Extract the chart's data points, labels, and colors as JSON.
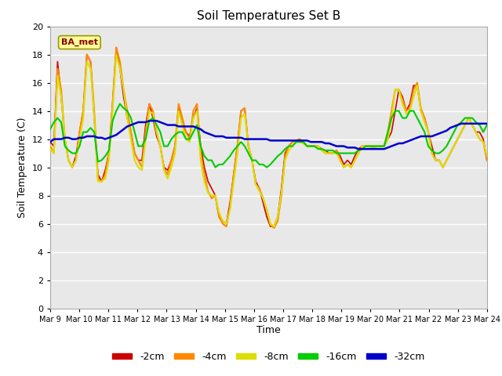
{
  "title": "Soil Temperatures Set B",
  "xlabel": "Time",
  "ylabel": "Soil Temperature (C)",
  "annotation": "BA_met",
  "ylim": [
    0,
    20
  ],
  "yticks": [
    0,
    2,
    4,
    6,
    8,
    10,
    12,
    14,
    16,
    18,
    20
  ],
  "xtick_labels": [
    "Mar 9",
    "Mar 10",
    "Mar 11",
    "Mar 12",
    "Mar 13",
    "Mar 14",
    "Mar 15",
    "Mar 16",
    "Mar 17",
    "Mar 18",
    "Mar 19",
    "Mar 20",
    "Mar 21",
    "Mar 22",
    "Mar 23",
    "Mar 24"
  ],
  "series": {
    "-2cm": {
      "color": "#cc0000",
      "lw": 1.2,
      "data": [
        11.8,
        11.5,
        17.5,
        15.0,
        12.0,
        10.5,
        10.0,
        10.8,
        12.5,
        14.0,
        18.0,
        17.5,
        13.5,
        9.5,
        9.0,
        9.8,
        11.0,
        14.5,
        18.5,
        17.0,
        15.0,
        13.5,
        12.5,
        11.0,
        10.5,
        10.5,
        13.0,
        14.5,
        13.5,
        12.2,
        11.5,
        10.0,
        9.8,
        10.5,
        11.5,
        14.3,
        13.0,
        12.5,
        12.2,
        13.5,
        14.2,
        11.5,
        10.0,
        9.0,
        8.5,
        8.0,
        6.5,
        6.2,
        6.0,
        7.5,
        9.5,
        11.5,
        14.0,
        14.2,
        11.5,
        10.5,
        9.0,
        8.5,
        7.5,
        6.5,
        5.8,
        5.8,
        6.5,
        8.5,
        11.0,
        11.5,
        11.8,
        11.9,
        12.0,
        11.8,
        11.5,
        11.5,
        11.5,
        11.5,
        11.3,
        11.2,
        11.0,
        11.0,
        11.2,
        10.8,
        10.2,
        10.5,
        10.2,
        10.8,
        11.3,
        11.5,
        11.5,
        11.5,
        11.5,
        11.5,
        11.5,
        11.5,
        12.0,
        12.5,
        14.0,
        15.5,
        15.0,
        14.0,
        14.5,
        15.8,
        15.8,
        14.0,
        13.5,
        12.5,
        11.5,
        10.5,
        10.5,
        10.0,
        10.5,
        11.0,
        11.5,
        12.0,
        12.5,
        13.0,
        13.5,
        13.0,
        12.5,
        12.5,
        12.0,
        10.5
      ]
    },
    "-4cm": {
      "color": "#ff8800",
      "lw": 1.5,
      "data": [
        11.5,
        11.0,
        17.0,
        15.5,
        12.0,
        10.5,
        10.0,
        10.5,
        12.5,
        14.0,
        18.0,
        17.5,
        14.0,
        9.2,
        9.0,
        9.5,
        11.0,
        14.5,
        18.5,
        17.5,
        15.5,
        14.0,
        12.5,
        11.0,
        10.5,
        10.0,
        12.5,
        14.5,
        14.0,
        12.5,
        11.5,
        9.9,
        9.5,
        10.5,
        11.5,
        14.5,
        13.5,
        12.5,
        12.0,
        14.0,
        14.5,
        11.0,
        9.5,
        8.3,
        7.8,
        8.0,
        6.5,
        6.0,
        5.8,
        7.2,
        9.5,
        11.5,
        14.0,
        14.2,
        11.5,
        10.5,
        8.8,
        8.5,
        7.8,
        7.0,
        5.9,
        5.7,
        6.2,
        8.0,
        10.8,
        11.5,
        11.8,
        11.9,
        12.0,
        11.7,
        11.5,
        11.5,
        11.5,
        11.5,
        11.2,
        11.0,
        11.0,
        11.0,
        11.2,
        10.5,
        10.0,
        10.2,
        10.0,
        10.5,
        11.0,
        11.5,
        11.5,
        11.5,
        11.3,
        11.5,
        11.5,
        11.5,
        12.5,
        14.0,
        15.5,
        15.5,
        14.8,
        14.0,
        14.2,
        15.5,
        16.0,
        14.2,
        13.5,
        12.5,
        11.0,
        10.5,
        10.5,
        10.0,
        10.5,
        11.0,
        11.5,
        12.0,
        12.5,
        13.0,
        13.5,
        13.0,
        12.5,
        12.0,
        11.8,
        10.5
      ]
    },
    "-8cm": {
      "color": "#dddd00",
      "lw": 1.5,
      "data": [
        11.3,
        11.0,
        16.5,
        15.0,
        12.0,
        10.5,
        10.0,
        10.5,
        12.0,
        13.5,
        17.5,
        17.0,
        13.5,
        9.0,
        9.0,
        9.2,
        10.5,
        14.0,
        18.0,
        17.0,
        15.5,
        13.5,
        12.0,
        10.5,
        10.0,
        9.8,
        12.0,
        14.0,
        13.8,
        12.5,
        11.5,
        9.8,
        9.2,
        10.0,
        11.0,
        14.0,
        13.0,
        12.0,
        11.8,
        13.5,
        14.0,
        10.5,
        9.0,
        8.2,
        8.0,
        8.0,
        6.8,
        6.2,
        6.0,
        7.0,
        9.0,
        11.0,
        13.5,
        13.8,
        11.5,
        10.5,
        8.8,
        8.3,
        7.8,
        7.0,
        6.0,
        5.8,
        6.5,
        8.2,
        10.5,
        11.2,
        11.5,
        11.8,
        11.8,
        11.7,
        11.5,
        11.5,
        11.5,
        11.5,
        11.2,
        11.0,
        11.0,
        11.0,
        11.0,
        10.5,
        10.0,
        10.2,
        10.0,
        10.5,
        11.0,
        11.5,
        11.5,
        11.5,
        11.3,
        11.5,
        11.5,
        11.5,
        12.0,
        13.5,
        15.5,
        15.5,
        14.5,
        13.8,
        14.0,
        15.0,
        15.8,
        14.0,
        13.2,
        12.5,
        11.0,
        10.5,
        10.5,
        10.0,
        10.5,
        11.0,
        11.5,
        12.0,
        12.5,
        13.0,
        13.5,
        13.0,
        12.5,
        12.0,
        11.8,
        10.8
      ]
    },
    "-16cm": {
      "color": "#00cc00",
      "lw": 1.5,
      "data": [
        12.7,
        13.2,
        13.5,
        13.2,
        11.5,
        11.2,
        11.0,
        11.0,
        11.5,
        12.5,
        12.5,
        12.8,
        12.5,
        10.4,
        10.5,
        10.8,
        11.2,
        13.3,
        14.0,
        14.5,
        14.2,
        14.0,
        13.5,
        12.5,
        11.5,
        11.5,
        12.0,
        13.3,
        13.5,
        13.0,
        12.5,
        11.5,
        11.5,
        12.0,
        12.3,
        12.5,
        12.5,
        12.0,
        12.0,
        12.5,
        13.0,
        11.5,
        10.8,
        10.5,
        10.5,
        10.0,
        10.2,
        10.2,
        10.5,
        10.8,
        11.2,
        11.5,
        11.8,
        11.5,
        11.0,
        10.5,
        10.5,
        10.2,
        10.2,
        10.0,
        10.2,
        10.5,
        10.8,
        11.0,
        11.3,
        11.5,
        11.5,
        11.8,
        11.8,
        11.8,
        11.5,
        11.5,
        11.5,
        11.3,
        11.3,
        11.2,
        11.2,
        11.2,
        11.0,
        11.0,
        11.0,
        11.0,
        11.0,
        11.0,
        11.2,
        11.3,
        11.5,
        11.5,
        11.5,
        11.5,
        11.5,
        11.5,
        12.5,
        13.5,
        14.0,
        14.0,
        13.5,
        13.5,
        14.0,
        14.0,
        13.5,
        13.0,
        12.5,
        11.5,
        11.2,
        11.0,
        11.0,
        11.2,
        11.5,
        12.0,
        12.5,
        13.0,
        13.2,
        13.5,
        13.5,
        13.5,
        13.2,
        13.0,
        12.5,
        13.0
      ]
    },
    "-32cm": {
      "color": "#0000cc",
      "lw": 1.8,
      "data": [
        11.8,
        12.0,
        12.0,
        12.0,
        12.1,
        12.1,
        12.0,
        12.0,
        12.1,
        12.1,
        12.2,
        12.2,
        12.2,
        12.1,
        12.1,
        12.0,
        12.1,
        12.2,
        12.3,
        12.5,
        12.7,
        12.9,
        13.0,
        13.1,
        13.2,
        13.2,
        13.2,
        13.3,
        13.3,
        13.3,
        13.2,
        13.1,
        13.0,
        13.0,
        13.0,
        12.9,
        12.9,
        12.9,
        12.9,
        12.9,
        12.8,
        12.7,
        12.5,
        12.4,
        12.3,
        12.2,
        12.2,
        12.2,
        12.1,
        12.1,
        12.1,
        12.1,
        12.1,
        12.0,
        12.0,
        12.0,
        12.0,
        12.0,
        12.0,
        12.0,
        11.9,
        11.9,
        11.9,
        11.9,
        11.9,
        11.9,
        11.9,
        11.9,
        11.9,
        11.9,
        11.9,
        11.8,
        11.8,
        11.8,
        11.8,
        11.7,
        11.7,
        11.6,
        11.5,
        11.5,
        11.5,
        11.4,
        11.4,
        11.4,
        11.3,
        11.3,
        11.3,
        11.3,
        11.3,
        11.3,
        11.3,
        11.3,
        11.4,
        11.5,
        11.6,
        11.7,
        11.7,
        11.8,
        11.9,
        12.0,
        12.1,
        12.2,
        12.2,
        12.2,
        12.2,
        12.3,
        12.4,
        12.5,
        12.6,
        12.8,
        12.9,
        13.0,
        13.1,
        13.1,
        13.1,
        13.1,
        13.1,
        13.1,
        13.1,
        13.1
      ]
    }
  },
  "plot_bg": "#e8e8e8",
  "fig_bg": "#ffffff",
  "grid_color": "#ffffff",
  "legend_entries": [
    "-2cm",
    "-4cm",
    "-8cm",
    "-16cm",
    "-32cm"
  ],
  "legend_colors": [
    "#cc0000",
    "#ff8800",
    "#dddd00",
    "#00cc00",
    "#0000cc"
  ]
}
